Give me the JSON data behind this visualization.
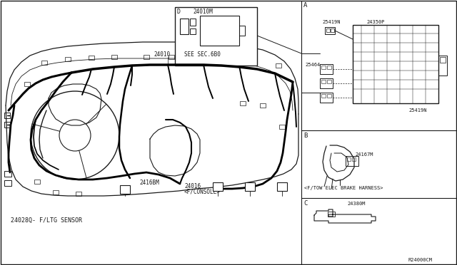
{
  "bg_color": "#ffffff",
  "line_color": "#1a1a1a",
  "fig_width": 6.4,
  "fig_height": 3.72,
  "dpi": 100,
  "labels": {
    "main_harness": "24010",
    "see_sec": "SEE SEC.6B0",
    "connector_d_label": "2416BM",
    "connector_console": "24016",
    "connector_console2": "<F/CONSOLE>",
    "sensor_label": "24028Q- F/LTG SENSOR",
    "ref_code": "R24000CM",
    "part_A1": "25419N",
    "part_A2": "24350P",
    "part_A3": "25464",
    "part_A4": "25419N",
    "part_B1": "24167M",
    "part_B2": "<F/TOW ELEC BRAKE HARNESS>",
    "part_C1": "24380M",
    "inset_label": "24010M",
    "section_A": "A",
    "section_B": "B",
    "section_C": "C",
    "section_D": "D",
    "conn_A": "A",
    "conn_B": "B",
    "conn_C": "C",
    "conn_D": "D"
  }
}
